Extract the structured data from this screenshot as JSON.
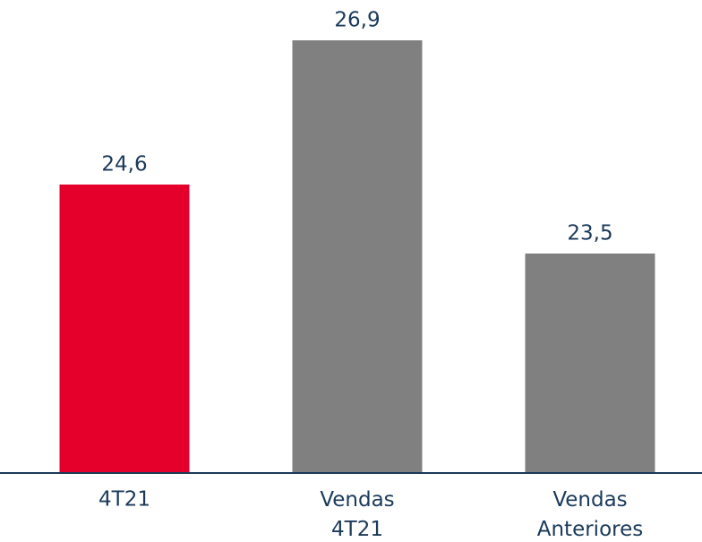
{
  "chart_data": {
    "type": "bar",
    "categories": [
      "4T21",
      "Vendas 4T21",
      "Vendas Anteriores"
    ],
    "values": [
      24.6,
      26.9,
      23.5
    ],
    "value_labels": [
      "24,6",
      "26,9",
      "23,5"
    ],
    "colors": [
      "#e4002b",
      "#808080",
      "#808080"
    ],
    "ylim": [
      20,
      27.5
    ]
  }
}
